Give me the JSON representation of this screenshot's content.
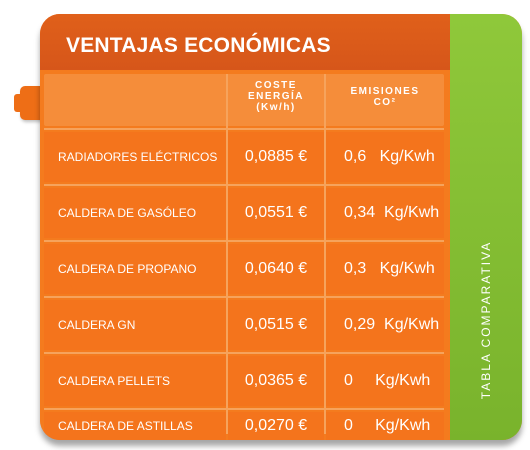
{
  "title": "VENTAJAS ECONÓMICAS",
  "headers": {
    "cost_line1": "COSTE",
    "cost_line2": "ENERGÍA",
    "cost_line3": "(Kw/h)",
    "emissions_line1": "EMISIONES",
    "emissions_line2": "CO²"
  },
  "side_label": "TABLA COMPARATIVA",
  "rows": [
    {
      "name": "RADIADORES ELÉCTRICOS",
      "cost": "0,0885 €",
      "emissions": "0,6   Kg/Kwh"
    },
    {
      "name": "CALDERA DE GASÓLEO",
      "cost": "0,0551 €",
      "emissions": "0,34  Kg/Kwh"
    },
    {
      "name": "CALDERA DE PROPANO",
      "cost": "0,0640 €",
      "emissions": "0,3   Kg/Kwh"
    },
    {
      "name": "CALDERA GN",
      "cost": "0,0515 €",
      "emissions": "0,29  Kg/Kwh"
    },
    {
      "name": "CALDERA PELLETS",
      "cost": "0,0365 €",
      "emissions": "0     Kg/Kwh"
    },
    {
      "name": "CALDERA DE ASTILLAS",
      "cost": "0,0270 €",
      "emissions": "0     Kg/Kwh"
    }
  ],
  "colors": {
    "orange": "#f4741c",
    "dark_orange": "#d6561a",
    "green": "#80b830"
  }
}
